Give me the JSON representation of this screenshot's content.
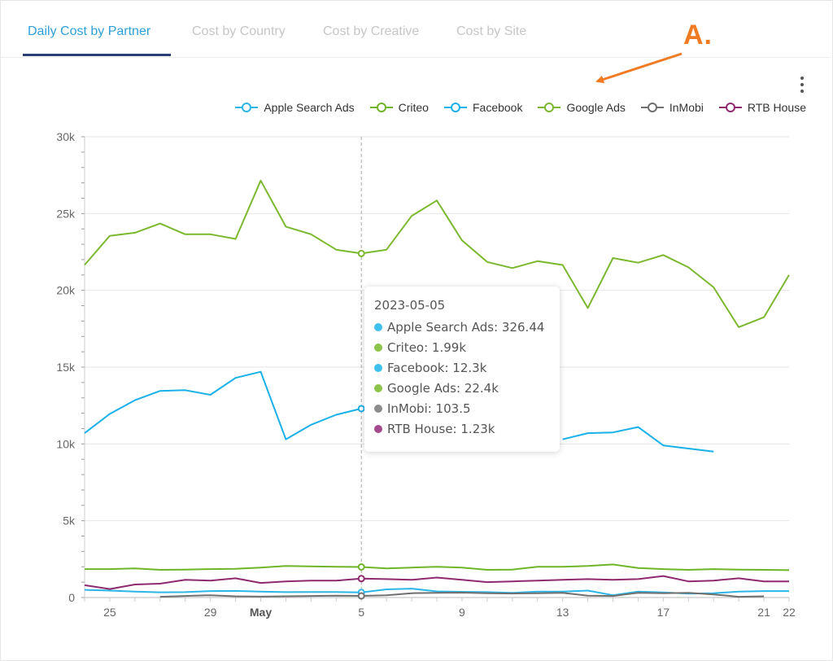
{
  "tabs": [
    {
      "label": "Daily Cost by Partner",
      "active": true
    },
    {
      "label": "Cost by Country",
      "active": false
    },
    {
      "label": "Cost by Creative",
      "active": false
    },
    {
      "label": "Cost by Site",
      "active": false
    }
  ],
  "annotation": "A.",
  "colors": {
    "apple": "#2bb6e6",
    "criteo": "#6fb528",
    "facebook": "#1ab0e8",
    "google": "#7cb82f",
    "inmobi": "#707070",
    "rtb": "#8e2a6e",
    "annotation": "#f07b22",
    "tab_active": "#2f9fd8",
    "tab_underline": "#2b3e7a"
  },
  "tooltip": {
    "date": "2023-05-05",
    "rows": [
      {
        "text": "Apple Search Ads: 326.44",
        "color": "#3ec1ec"
      },
      {
        "text": "Criteo: 1.99k",
        "color": "#8cc54a"
      },
      {
        "text": "Facebook: 12.3k",
        "color": "#3ec1ec"
      },
      {
        "text": "Google Ads: 22.4k",
        "color": "#8cc54a"
      },
      {
        "text": "InMobi: 103.5",
        "color": "#8c8c8c"
      },
      {
        "text": "RTB House: 1.23k",
        "color": "#a54a8e"
      }
    ]
  },
  "chart_data": {
    "type": "line",
    "x": [
      "2023-04-24",
      "2023-04-25",
      "2023-04-26",
      "2023-04-27",
      "2023-04-28",
      "2023-04-29",
      "2023-04-30",
      "2023-05-01",
      "2023-05-02",
      "2023-05-03",
      "2023-05-04",
      "2023-05-05",
      "2023-05-06",
      "2023-05-07",
      "2023-05-08",
      "2023-05-09",
      "2023-05-10",
      "2023-05-11",
      "2023-05-12",
      "2023-05-13",
      "2023-05-14",
      "2023-05-15",
      "2023-05-16",
      "2023-05-17",
      "2023-05-18",
      "2023-05-19",
      "2023-05-20",
      "2023-05-21",
      "2023-05-22"
    ],
    "x_tick_labels": [
      {
        "x": "2023-04-25",
        "label": "25",
        "bold": false
      },
      {
        "x": "2023-04-29",
        "label": "29",
        "bold": false
      },
      {
        "x": "2023-05-01",
        "label": "May",
        "bold": true
      },
      {
        "x": "2023-05-05",
        "label": "5",
        "bold": false
      },
      {
        "x": "2023-05-09",
        "label": "9",
        "bold": false
      },
      {
        "x": "2023-05-13",
        "label": "13",
        "bold": false
      },
      {
        "x": "2023-05-17",
        "label": "17",
        "bold": false
      },
      {
        "x": "2023-05-21",
        "label": "21",
        "bold": false
      },
      {
        "x": "2023-05-22",
        "label": "22",
        "bold": false
      }
    ],
    "y_ticks": [
      0,
      5000,
      10000,
      15000,
      20000,
      25000,
      30000
    ],
    "y_tick_labels": [
      "0",
      "5k",
      "10k",
      "15k",
      "20k",
      "25k",
      "30k"
    ],
    "ylim": [
      0,
      30000
    ],
    "grid": true,
    "legend_position": "top-right",
    "crosshair_x": "2023-05-05",
    "series": [
      {
        "name": "Apple Search Ads",
        "color_key": "apple",
        "values": [
          500,
          450,
          380,
          340,
          350,
          420,
          430,
          380,
          350,
          360,
          360,
          330,
          530,
          580,
          400,
          370,
          350,
          300,
          380,
          380,
          450,
          150,
          380,
          330,
          250,
          280,
          380,
          420,
          420
        ]
      },
      {
        "name": "Criteo",
        "color_key": "criteo",
        "values": [
          1850,
          1850,
          1900,
          1800,
          1820,
          1850,
          1870,
          1950,
          2050,
          2030,
          2000,
          1990,
          1900,
          1950,
          2000,
          1950,
          1800,
          1820,
          2000,
          2000,
          2050,
          2150,
          1920,
          1850,
          1800,
          1850,
          1820,
          1800,
          1780
        ]
      },
      {
        "name": "Facebook",
        "color_key": "facebook",
        "values": [
          10700,
          11950,
          12850,
          13450,
          13500,
          13200,
          14300,
          14700,
          10300,
          11250,
          11900,
          12300,
          null,
          null,
          null,
          null,
          null,
          null,
          null,
          10300,
          10700,
          10750,
          11100,
          9900,
          9700,
          9500,
          null,
          null,
          null
        ]
      },
      {
        "name": "Google Ads",
        "color_key": "google",
        "values": [
          21650,
          23550,
          23750,
          24350,
          23650,
          23650,
          23350,
          27150,
          24150,
          23650,
          22650,
          22400,
          22650,
          24850,
          25850,
          23250,
          21850,
          21450,
          21900,
          21650,
          18850,
          22100,
          21800,
          22300,
          21500,
          20200,
          17600,
          18250,
          21000
        ]
      },
      {
        "name": "InMobi",
        "color_key": "inmobi",
        "values": [
          null,
          null,
          null,
          50,
          100,
          150,
          80,
          60,
          80,
          100,
          120,
          103.5,
          150,
          280,
          300,
          320,
          280,
          260,
          280,
          300,
          120,
          100,
          300,
          280,
          300,
          200,
          50,
          80,
          null
        ]
      },
      {
        "name": "RTB House",
        "color_key": "rtb",
        "values": [
          800,
          550,
          850,
          900,
          1150,
          1100,
          1250,
          950,
          1050,
          1100,
          1100,
          1230,
          1200,
          1150,
          1300,
          1150,
          1000,
          1050,
          1100,
          1150,
          1200,
          1150,
          1200,
          1400,
          1050,
          1100,
          1250,
          1050,
          1050
        ]
      }
    ]
  }
}
